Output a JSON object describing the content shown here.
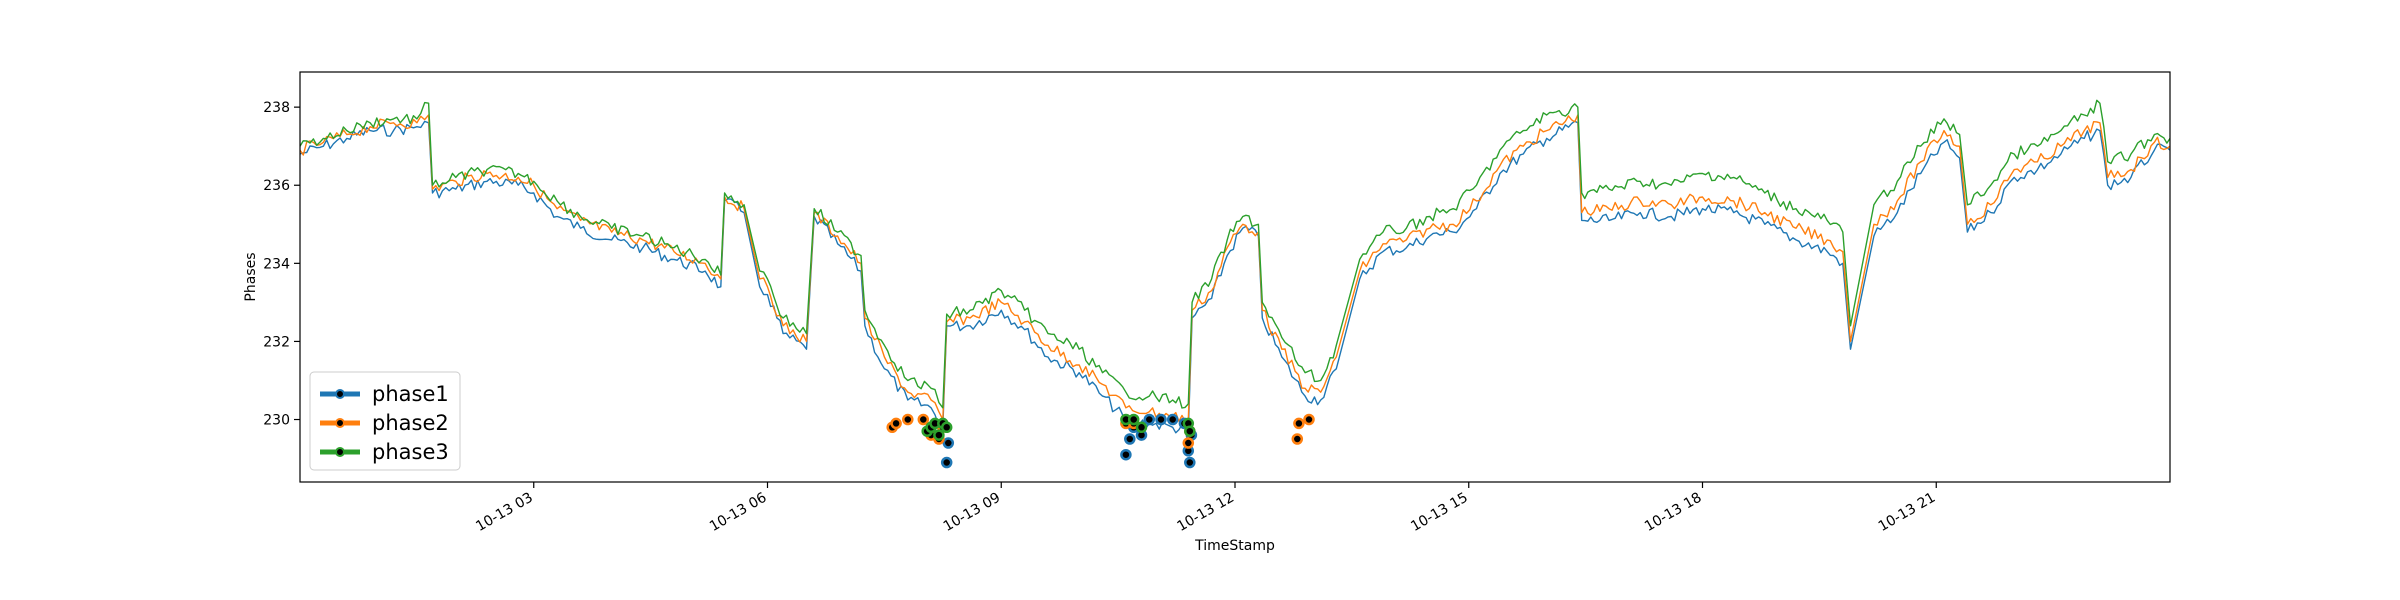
{
  "chart_data": {
    "type": "line",
    "title": "",
    "xlabel": "TimeStamp",
    "ylabel": "Phases",
    "x_unit": "hours since 10-13 00:00",
    "xlim": [
      0,
      24
    ],
    "ylim": [
      228.4,
      238.9
    ],
    "grid": false,
    "legend_position": "lower left",
    "x_tick_values": [
      3,
      6,
      9,
      12,
      15,
      18,
      21
    ],
    "x_tick_labels": [
      "10-13 03",
      "10-13 06",
      "10-13 09",
      "10-13 12",
      "10-13 15",
      "10-13 18",
      "10-13 21"
    ],
    "y_ticks": [
      230,
      232,
      234,
      236,
      238
    ],
    "y_tick_labels": [
      "230",
      "232",
      "234",
      "236",
      "238"
    ],
    "series": [
      {
        "name": "phase1",
        "color": "#1f77b4",
        "x": [
          0,
          0.3,
          0.6,
          0.9,
          1.2,
          1.5,
          1.65,
          1.7,
          2.0,
          2.4,
          2.8,
          3.0,
          3.3,
          3.6,
          4.0,
          4.4,
          4.8,
          5.2,
          5.4,
          5.45,
          5.7,
          5.9,
          6.0,
          6.2,
          6.5,
          6.6,
          6.9,
          7.2,
          7.25,
          7.5,
          7.8,
          8.1,
          8.25,
          8.3,
          8.6,
          9.0,
          9.3,
          9.6,
          10.0,
          10.3,
          10.6,
          10.9,
          11.2,
          11.4,
          11.45,
          11.7,
          11.9,
          12.1,
          12.3,
          12.35,
          12.6,
          12.9,
          13.1,
          13.3,
          13.6,
          13.9,
          14.2,
          14.5,
          14.8,
          15.1,
          15.4,
          15.7,
          16.0,
          16.4,
          16.45,
          16.8,
          17.2,
          17.6,
          18.0,
          18.4,
          18.8,
          19.2,
          19.6,
          19.8,
          19.9,
          20.2,
          20.5,
          20.8,
          21.1,
          21.3,
          21.4,
          21.7,
          22.0,
          22.3,
          22.6,
          22.9,
          23.1,
          23.2,
          23.5,
          23.8,
          24.0
        ],
        "y": [
          236.8,
          237.0,
          237.2,
          237.4,
          237.4,
          237.5,
          237.6,
          235.8,
          235.9,
          236.1,
          236.0,
          235.8,
          235.2,
          234.9,
          234.6,
          234.4,
          234.1,
          233.8,
          233.4,
          235.6,
          235.3,
          233.4,
          233.2,
          232.2,
          231.8,
          235.2,
          234.5,
          233.8,
          232.4,
          231.3,
          230.5,
          230.3,
          229.8,
          232.4,
          232.4,
          232.8,
          232.3,
          231.6,
          231.2,
          230.6,
          230.0,
          229.9,
          229.8,
          229.7,
          232.6,
          233.1,
          234.2,
          234.9,
          234.7,
          232.6,
          231.6,
          230.6,
          230.5,
          231.3,
          233.6,
          234.3,
          234.4,
          234.7,
          234.8,
          235.4,
          236.3,
          236.8,
          237.2,
          237.6,
          235.1,
          235.1,
          235.3,
          235.2,
          235.4,
          235.3,
          235.0,
          234.6,
          234.3,
          234.0,
          231.8,
          234.7,
          235.3,
          236.3,
          237.1,
          236.7,
          234.8,
          235.3,
          236.2,
          236.4,
          236.8,
          237.2,
          237.4,
          236.0,
          236.2,
          236.9,
          236.9
        ]
      },
      {
        "name": "phase2",
        "color": "#ff7f0e",
        "x": [
          0,
          0.3,
          0.6,
          0.9,
          1.2,
          1.5,
          1.65,
          1.7,
          2.0,
          2.4,
          2.8,
          3.0,
          3.3,
          3.6,
          4.0,
          4.4,
          4.8,
          5.2,
          5.4,
          5.45,
          5.7,
          5.9,
          6.0,
          6.2,
          6.5,
          6.6,
          6.9,
          7.2,
          7.25,
          7.5,
          7.8,
          8.1,
          8.25,
          8.3,
          8.6,
          9.0,
          9.3,
          9.6,
          10.0,
          10.3,
          10.6,
          10.9,
          11.2,
          11.4,
          11.45,
          11.7,
          11.9,
          12.1,
          12.3,
          12.35,
          12.6,
          12.9,
          13.1,
          13.3,
          13.6,
          13.9,
          14.2,
          14.5,
          14.8,
          15.1,
          15.4,
          15.7,
          16.0,
          16.4,
          16.45,
          16.8,
          17.2,
          17.6,
          18.0,
          18.4,
          18.8,
          19.2,
          19.6,
          19.8,
          19.9,
          20.2,
          20.5,
          20.8,
          21.1,
          21.3,
          21.4,
          21.7,
          22.0,
          22.3,
          22.6,
          22.9,
          23.1,
          23.2,
          23.5,
          23.8,
          24.0
        ],
        "y": [
          236.9,
          237.1,
          237.3,
          237.5,
          237.6,
          237.6,
          237.8,
          235.9,
          236.1,
          236.3,
          236.2,
          236.0,
          235.4,
          235.1,
          234.8,
          234.6,
          234.3,
          234.0,
          233.6,
          235.7,
          235.4,
          233.6,
          233.4,
          232.4,
          232.0,
          235.3,
          234.7,
          234.0,
          232.6,
          231.6,
          230.7,
          230.5,
          230.0,
          232.5,
          232.6,
          233.0,
          232.5,
          231.9,
          231.4,
          230.9,
          230.3,
          230.2,
          230.1,
          230.0,
          232.8,
          233.3,
          234.4,
          235.0,
          234.8,
          232.8,
          231.8,
          230.8,
          230.7,
          231.6,
          233.8,
          234.5,
          234.6,
          234.9,
          235.0,
          235.6,
          236.5,
          237.0,
          237.4,
          237.8,
          235.3,
          235.4,
          235.6,
          235.5,
          235.7,
          235.6,
          235.3,
          234.9,
          234.6,
          234.3,
          232.0,
          235.0,
          235.6,
          236.6,
          237.4,
          237.0,
          235.0,
          235.5,
          236.4,
          236.6,
          237.0,
          237.4,
          237.6,
          236.2,
          236.4,
          237.1,
          237.0
        ]
      },
      {
        "name": "phase3",
        "color": "#2ca02c",
        "x": [
          0,
          0.3,
          0.6,
          0.9,
          1.2,
          1.5,
          1.65,
          1.7,
          2.0,
          2.4,
          2.8,
          3.0,
          3.3,
          3.6,
          4.0,
          4.4,
          4.8,
          5.2,
          5.4,
          5.45,
          5.7,
          5.9,
          6.0,
          6.2,
          6.5,
          6.6,
          6.9,
          7.2,
          7.25,
          7.5,
          7.8,
          8.1,
          8.25,
          8.3,
          8.6,
          9.0,
          9.3,
          9.6,
          10.0,
          10.3,
          10.6,
          10.9,
          11.2,
          11.4,
          11.45,
          11.7,
          11.9,
          12.1,
          12.3,
          12.35,
          12.6,
          12.9,
          13.1,
          13.3,
          13.6,
          13.9,
          14.2,
          14.5,
          14.8,
          15.1,
          15.4,
          15.7,
          16.0,
          16.4,
          16.45,
          16.8,
          17.2,
          17.6,
          18.0,
          18.4,
          18.8,
          19.2,
          19.6,
          19.8,
          19.9,
          20.2,
          20.5,
          20.8,
          21.1,
          21.3,
          21.4,
          21.7,
          22.0,
          22.3,
          22.6,
          22.9,
          23.1,
          23.2,
          23.5,
          23.8,
          24.0
        ],
        "y": [
          237.0,
          237.2,
          237.4,
          237.6,
          237.7,
          237.7,
          238.1,
          236.0,
          236.2,
          236.4,
          236.3,
          236.1,
          235.6,
          235.2,
          234.9,
          234.7,
          234.4,
          234.1,
          233.7,
          235.8,
          235.5,
          233.8,
          233.6,
          232.6,
          232.2,
          235.4,
          234.8,
          234.2,
          232.8,
          231.9,
          231.0,
          230.8,
          230.3,
          232.7,
          232.8,
          233.3,
          232.8,
          232.2,
          231.8,
          231.2,
          230.7,
          230.6,
          230.5,
          230.4,
          233.0,
          233.6,
          234.6,
          235.2,
          235.0,
          233.0,
          232.1,
          231.2,
          231.0,
          231.9,
          234.1,
          234.8,
          234.9,
          235.2,
          235.4,
          236.0,
          236.9,
          237.4,
          237.8,
          238.0,
          235.8,
          235.9,
          236.1,
          236.0,
          236.3,
          236.2,
          235.8,
          235.4,
          235.1,
          234.8,
          232.4,
          235.5,
          236.1,
          237.0,
          237.7,
          237.3,
          235.5,
          236.0,
          236.8,
          237.0,
          237.4,
          237.8,
          238.1,
          236.6,
          236.8,
          237.3,
          237.2
        ]
      }
    ],
    "markers": [
      {
        "series": "phase1",
        "x": [
          8.3,
          8.32,
          10.6,
          10.65,
          10.7,
          10.8,
          10.9,
          11.05,
          11.2,
          11.35,
          11.4,
          11.42,
          11.44
        ],
        "y": [
          228.9,
          229.4,
          229.1,
          229.5,
          229.8,
          229.6,
          230.0,
          230.0,
          230.0,
          229.9,
          229.2,
          228.9,
          229.6
        ]
      },
      {
        "series": "phase2",
        "x": [
          7.6,
          7.65,
          7.8,
          8.0,
          8.1,
          8.2,
          8.25,
          10.6,
          10.7,
          11.4,
          11.42,
          12.8,
          12.82,
          12.95
        ],
        "y": [
          229.8,
          229.9,
          230.0,
          230.0,
          229.6,
          229.5,
          229.8,
          229.9,
          229.9,
          229.4,
          229.7,
          229.5,
          229.9,
          230.0
        ]
      },
      {
        "series": "phase3",
        "x": [
          8.05,
          8.1,
          8.15,
          8.2,
          8.25,
          8.3,
          10.6,
          10.7,
          10.8,
          11.4,
          11.42
        ],
        "y": [
          229.7,
          229.8,
          229.9,
          229.6,
          229.9,
          229.8,
          230.0,
          230.0,
          229.8,
          229.9,
          229.7
        ]
      }
    ]
  }
}
